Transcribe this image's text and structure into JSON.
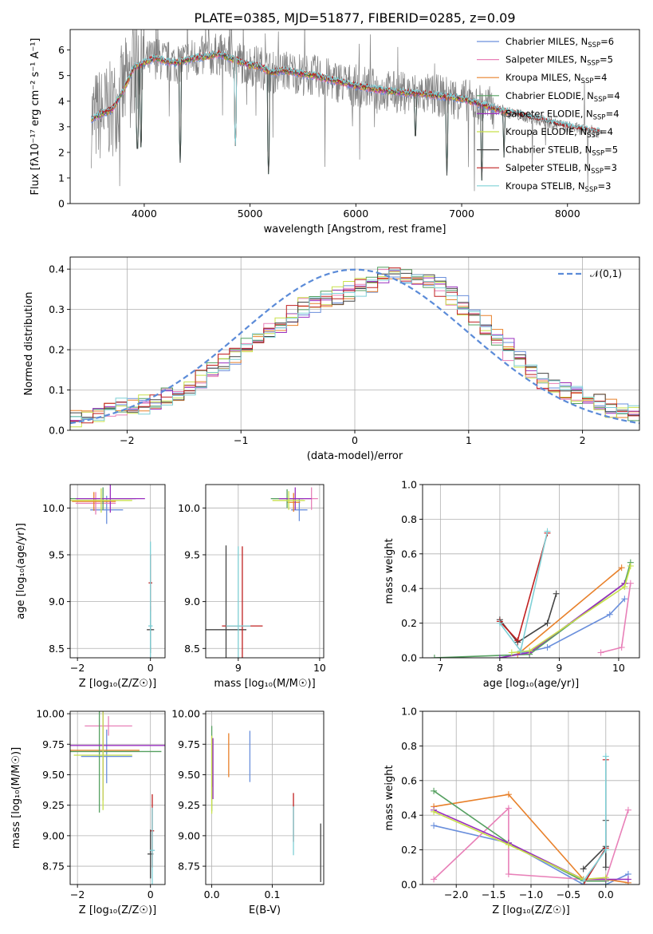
{
  "figure_title": "PLATE=0385, MJD=51877, FIBERID=0285, z=0.09",
  "colors": {
    "chabrier_miles": "#6a8fdc",
    "salpeter_miles": "#e880b8",
    "kroupa_miles": "#e8802a",
    "chabrier_elodie": "#55a060",
    "salpeter_elodie": "#9a2fbf",
    "kroupa_elodie": "#c8e04a",
    "chabrier_stelib": "#444444",
    "salpeter_stelib": "#c02020",
    "kroupa_stelib": "#7fd0d6",
    "observed": "#808080",
    "normal_curve": "#5b8bd8",
    "grid": "#b0b0b0"
  },
  "chart_data": [
    {
      "id": "spectrum",
      "type": "line",
      "title": "PLATE=0385, MJD=51877, FIBERID=0285, z=0.09",
      "xlabel": "wavelength [Angstrom, rest frame]",
      "ylabel": "Flux [fλ10⁻¹⁷ erg cm⁻² s⁻¹ A⁻¹]",
      "xlim": [
        3300,
        8680
      ],
      "ylim": [
        0,
        6.8
      ],
      "xticks": [
        4000,
        5000,
        6000,
        7000,
        8000
      ],
      "yticks": [
        0,
        1,
        2,
        3,
        4,
        5,
        6
      ],
      "legend_position": "top-right",
      "legend": [
        {
          "key": "chabrier_miles",
          "label": "Chabrier MILES, N",
          "sub": "SSP",
          "tail": "=6"
        },
        {
          "key": "salpeter_miles",
          "label": "Salpeter MILES, N",
          "sub": "SSP",
          "tail": "=5"
        },
        {
          "key": "kroupa_miles",
          "label": "Kroupa MILES, N",
          "sub": "SSP",
          "tail": "=4"
        },
        {
          "key": "chabrier_elodie",
          "label": "Chabrier ELODIE, N",
          "sub": "SSP",
          "tail": "=4"
        },
        {
          "key": "salpeter_elodie",
          "label": "Salpeter ELODIE, N",
          "sub": "SSP",
          "tail": "=4"
        },
        {
          "key": "kroupa_elodie",
          "label": "Kroupa ELODIE, N",
          "sub": "SSP",
          "tail": "=4"
        },
        {
          "key": "chabrier_stelib",
          "label": "Chabrier STELIB, N",
          "sub": "SSP",
          "tail": "=5"
        },
        {
          "key": "salpeter_stelib",
          "label": "Salpeter STELIB, N",
          "sub": "SSP",
          "tail": "=3"
        },
        {
          "key": "kroupa_stelib",
          "label": "Kroupa STELIB, N",
          "sub": "SSP",
          "tail": "=3"
        }
      ],
      "model_continuum": [
        [
          3500,
          3.3
        ],
        [
          3700,
          3.7
        ],
        [
          3800,
          4.4
        ],
        [
          3900,
          5.3
        ],
        [
          4000,
          5.5
        ],
        [
          4100,
          5.7
        ],
        [
          4200,
          5.55
        ],
        [
          4300,
          5.5
        ],
        [
          4400,
          5.6
        ],
        [
          4500,
          5.7
        ],
        [
          4600,
          5.75
        ],
        [
          4700,
          5.85
        ],
        [
          4800,
          5.7
        ],
        [
          4900,
          5.55
        ],
        [
          5000,
          5.4
        ],
        [
          5100,
          5.35
        ],
        [
          5200,
          5.1
        ],
        [
          5300,
          5.2
        ],
        [
          5400,
          5.15
        ],
        [
          5500,
          5.05
        ],
        [
          5600,
          5.0
        ],
        [
          5800,
          4.8
        ],
        [
          6000,
          4.6
        ],
        [
          6200,
          4.45
        ],
        [
          6400,
          4.35
        ],
        [
          6600,
          4.3
        ],
        [
          6800,
          4.2
        ],
        [
          7000,
          4.1
        ],
        [
          7200,
          3.85
        ],
        [
          7400,
          3.6
        ],
        [
          7600,
          3.4
        ],
        [
          7800,
          3.2
        ],
        [
          8000,
          3.0
        ],
        [
          8200,
          2.85
        ],
        [
          8300,
          2.8
        ]
      ],
      "model_extent": [
        3500,
        7450
      ],
      "stelib_extent": [
        3500,
        8300
      ],
      "observed_range": [
        3500,
        8330
      ],
      "observed_noise_scale": 1.2,
      "absorption_dips": [
        [
          3935,
          1.7
        ],
        [
          3970,
          1.9
        ],
        [
          4340,
          1.6
        ],
        [
          4861,
          2.1
        ],
        [
          5175,
          1.0
        ],
        [
          5500,
          5.0
        ],
        [
          6563,
          2.2
        ],
        [
          6860,
          1.1
        ],
        [
          7190,
          0.9
        ],
        [
          7400,
          1.8
        ]
      ]
    },
    {
      "id": "residual_histogram",
      "type": "bar",
      "xlabel": "(data-model)/error",
      "ylabel": "Normed distribution",
      "xlim": [
        -2.5,
        2.5
      ],
      "ylim": [
        0,
        0.43
      ],
      "xticks": [
        -2,
        -1,
        0,
        1,
        2
      ],
      "yticks": [
        0.0,
        0.1,
        0.2,
        0.3,
        0.4
      ],
      "bin_edges": [
        -2.5,
        2.5
      ],
      "bin_width": 0.1,
      "legend_position": "top-right",
      "legend": [
        {
          "key": "normal_curve",
          "label": "𝒩(0,1)"
        }
      ],
      "reference_curve": "normal pdf, mean 0, sigma 1",
      "series": [
        {
          "key": "chabrier_stelib",
          "values": [
            0.03,
            0.03,
            0.04,
            0.05,
            0.06,
            0.06,
            0.06,
            0.07,
            0.08,
            0.09,
            0.1,
            0.12,
            0.14,
            0.16,
            0.18,
            0.2,
            0.22,
            0.24,
            0.26,
            0.28,
            0.3,
            0.31,
            0.32,
            0.33,
            0.34,
            0.35,
            0.36,
            0.37,
            0.38,
            0.38,
            0.38,
            0.37,
            0.36,
            0.34,
            0.32,
            0.3,
            0.27,
            0.24,
            0.21,
            0.18,
            0.15,
            0.13,
            0.11,
            0.1,
            0.09,
            0.08,
            0.07,
            0.06,
            0.05,
            0.05
          ]
        },
        {
          "key": "salpeter_elodie",
          "values": [
            0.02,
            0.03,
            0.04,
            0.05,
            0.05,
            0.06,
            0.07,
            0.08,
            0.09,
            0.1,
            0.11,
            0.13,
            0.15,
            0.17,
            0.19,
            0.21,
            0.23,
            0.25,
            0.27,
            0.29,
            0.31,
            0.32,
            0.33,
            0.34,
            0.35,
            0.36,
            0.37,
            0.39,
            0.4,
            0.39,
            0.38,
            0.37,
            0.35,
            0.33,
            0.3,
            0.28,
            0.25,
            0.22,
            0.19,
            0.16,
            0.14,
            0.12,
            0.1,
            0.09,
            0.08,
            0.07,
            0.06,
            0.05,
            0.05,
            0.04
          ]
        }
      ]
    },
    {
      "id": "age_vs_Z",
      "type": "scatter",
      "xlabel": "Z [log₁₀(Z/Z☉)]",
      "ylabel": "age  [log₁₀(age/yr)]",
      "xlim": [
        -2.2,
        0.4
      ],
      "ylim": [
        8.4,
        10.25
      ],
      "xticks": [
        -2,
        0
      ],
      "yticks": [
        8.5,
        9.0,
        9.5,
        10.0
      ],
      "points": [
        {
          "key": "chabrier_miles",
          "x": -1.2,
          "xerr": 0.45,
          "y": 9.98,
          "yerr": 0.15
        },
        {
          "key": "salpeter_miles",
          "x": -1.5,
          "xerr": 0.55,
          "y": 10.05,
          "yerr": 0.12
        },
        {
          "key": "kroupa_miles",
          "x": -1.55,
          "xerr": 0.6,
          "y": 10.07,
          "yerr": 0.1
        },
        {
          "key": "chabrier_elodie",
          "x": -1.3,
          "xerr": 0.9,
          "y": 10.1,
          "yerr": 0.12
        },
        {
          "key": "salpeter_elodie",
          "x": -1.1,
          "xerr": 0.95,
          "y": 10.1,
          "yerr": 0.15
        },
        {
          "key": "kroupa_elodie",
          "x": -1.35,
          "xerr": 0.85,
          "y": 10.08,
          "yerr": 0.13
        },
        {
          "key": "chabrier_stelib",
          "x": 0.0,
          "xerr": 0.1,
          "y": 8.7,
          "yerr": 0.25
        },
        {
          "key": "salpeter_stelib",
          "x": 0.0,
          "xerr": 0.05,
          "y": 9.2,
          "yerr": 0.3
        },
        {
          "key": "kroupa_stelib",
          "x": 0.0,
          "xerr": 0.06,
          "y": 8.74,
          "yerr": 0.9
        }
      ]
    },
    {
      "id": "age_vs_mass",
      "type": "scatter",
      "xlabel": "mass [log₁₀(M/M☉)]",
      "ylabel": "",
      "xlim": [
        8.6,
        10.05
      ],
      "ylim": [
        8.4,
        10.25
      ],
      "xticks": [
        9,
        10
      ],
      "yticks": [
        8.5,
        9.0,
        9.5,
        10.0
      ],
      "points": [
        {
          "key": "chabrier_miles",
          "x": 9.75,
          "xerr": 0.1,
          "y": 9.98,
          "yerr": 0.12
        },
        {
          "key": "salpeter_miles",
          "x": 9.9,
          "xerr": 0.08,
          "y": 10.1,
          "yerr": 0.12
        },
        {
          "key": "kroupa_miles",
          "x": 9.68,
          "xerr": 0.08,
          "y": 10.06,
          "yerr": 0.1
        },
        {
          "key": "chabrier_elodie",
          "x": 9.6,
          "xerr": 0.2,
          "y": 10.1,
          "yerr": 0.1
        },
        {
          "key": "salpeter_elodie",
          "x": 9.7,
          "xerr": 0.2,
          "y": 10.1,
          "yerr": 0.12
        },
        {
          "key": "kroupa_elodie",
          "x": 9.62,
          "xerr": 0.2,
          "y": 10.08,
          "yerr": 0.1
        },
        {
          "key": "chabrier_stelib",
          "x": 8.85,
          "xerr": 0.25,
          "y": 8.7,
          "yerr": 0.9
        },
        {
          "key": "salpeter_stelib",
          "x": 9.05,
          "xerr": 0.25,
          "y": 8.74,
          "yerr": 0.85
        },
        {
          "key": "kroupa_stelib",
          "x": 9.0,
          "xerr": 0.15,
          "y": 8.74,
          "yerr": 0.85
        }
      ]
    },
    {
      "id": "weight_vs_age",
      "type": "line",
      "xlabel": "age  [log₁₀(age/yr)]",
      "ylabel": "mass weight",
      "xlim": [
        6.7,
        10.35
      ],
      "ylim": [
        0,
        1.0
      ],
      "xticks": [
        7,
        8,
        9,
        10
      ],
      "yticks": [
        0.0,
        0.2,
        0.4,
        0.6,
        0.8,
        1.0
      ],
      "series": [
        {
          "key": "chabrier_miles",
          "x": [
            8.0,
            8.8,
            9.85,
            10.1
          ],
          "y": [
            0.0,
            0.06,
            0.25,
            0.34
          ]
        },
        {
          "key": "salpeter_miles",
          "x": [
            9.7,
            10.05,
            10.2
          ],
          "y": [
            0.03,
            0.06,
            0.43
          ]
        },
        {
          "key": "kroupa_miles",
          "x": [
            8.3,
            10.05
          ],
          "y": [
            0.02,
            0.52
          ]
        },
        {
          "key": "chabrier_elodie",
          "x": [
            6.9,
            8.5,
            10.1,
            10.2
          ],
          "y": [
            0.0,
            0.02,
            0.43,
            0.55
          ]
        },
        {
          "key": "salpeter_elodie",
          "x": [
            8.0,
            8.5,
            10.1
          ],
          "y": [
            0.0,
            0.03,
            0.43
          ]
        },
        {
          "key": "kroupa_elodie",
          "x": [
            8.2,
            8.5,
            10.1,
            10.2
          ],
          "y": [
            0.03,
            0.04,
            0.41,
            0.53
          ]
        },
        {
          "key": "chabrier_stelib",
          "x": [
            8.0,
            8.3,
            8.8,
            8.95
          ],
          "y": [
            0.22,
            0.09,
            0.2,
            0.37
          ]
        },
        {
          "key": "salpeter_stelib",
          "x": [
            8.0,
            8.3,
            8.8
          ],
          "y": [
            0.21,
            0.1,
            0.72
          ]
        },
        {
          "key": "kroupa_stelib",
          "x": [
            8.0,
            8.35,
            8.8
          ],
          "y": [
            0.2,
            0.04,
            0.73
          ]
        }
      ]
    },
    {
      "id": "mass_vs_Z",
      "type": "scatter",
      "xlabel": "Z [log₁₀(Z/Z☉)]",
      "ylabel": "mass [log₁₀(M/M☉)]",
      "xlim": [
        -2.2,
        0.4
      ],
      "ylim": [
        8.6,
        10.02
      ],
      "xticks": [
        -2,
        0
      ],
      "yticks": [
        8.75,
        9.0,
        9.25,
        9.5,
        9.75,
        10.0
      ],
      "points": [
        {
          "key": "chabrier_miles",
          "x": -1.2,
          "xerr": 0.7,
          "y": 9.65,
          "yerr": 0.22
        },
        {
          "key": "salpeter_miles",
          "x": -1.15,
          "xerr": 0.65,
          "y": 9.9,
          "yerr": 0.08
        },
        {
          "key": "kroupa_miles",
          "x": -1.3,
          "xerr": 1.0,
          "y": 9.7,
          "yerr": 0.2
        },
        {
          "key": "chabrier_elodie",
          "x": -1.4,
          "xerr": 1.7,
          "y": 9.69,
          "yerr": 0.5
        },
        {
          "key": "salpeter_elodie",
          "x": -1.3,
          "xerr": 1.7,
          "y": 9.74,
          "yerr": 0.45
        },
        {
          "key": "kroupa_elodie",
          "x": -1.3,
          "xerr": 0.8,
          "y": 9.66,
          "yerr": 0.45
        },
        {
          "key": "chabrier_stelib",
          "x": 0.0,
          "xerr": 0.08,
          "y": 8.85,
          "yerr": 0.2
        },
        {
          "key": "salpeter_stelib",
          "x": 0.05,
          "xerr": 0.05,
          "y": 9.04,
          "yerr": 0.3
        },
        {
          "key": "kroupa_stelib",
          "x": 0.05,
          "xerr": 0.07,
          "y": 8.88,
          "yerr": 0.35
        }
      ]
    },
    {
      "id": "mass_vs_ebv",
      "type": "scatter",
      "xlabel": "E(B-V)",
      "ylabel": "",
      "xlim": [
        -0.01,
        0.185
      ],
      "ylim": [
        8.6,
        10.02
      ],
      "xticks": [
        0.0,
        0.1
      ],
      "yticks": [
        8.75,
        9.0,
        9.25,
        9.5,
        9.75,
        10.0
      ],
      "points": [
        {
          "key": "chabrier_miles",
          "x": 0.063,
          "y": 9.65,
          "yerr": 0.21
        },
        {
          "key": "salpeter_miles",
          "x": 0.001,
          "y": 9.6,
          "yerr": 0.2
        },
        {
          "key": "kroupa_miles",
          "x": 0.028,
          "y": 9.66,
          "yerr": 0.18
        },
        {
          "key": "chabrier_elodie",
          "x": 0.0,
          "y": 9.55,
          "yerr": 0.35
        },
        {
          "key": "salpeter_elodie",
          "x": 0.002,
          "y": 9.55,
          "yerr": 0.25
        },
        {
          "key": "kroupa_elodie",
          "x": 0.0,
          "y": 9.5,
          "yerr": 0.32
        },
        {
          "key": "chabrier_stelib",
          "x": 0.18,
          "y": 8.86,
          "yerr": 0.24
        },
        {
          "key": "salpeter_stelib",
          "x": 0.135,
          "y": 9.15,
          "yerr": 0.2
        },
        {
          "key": "kroupa_stelib",
          "x": 0.135,
          "y": 9.04,
          "yerr": 0.2
        }
      ]
    },
    {
      "id": "weight_vs_Z",
      "type": "line",
      "xlabel": "Z [log₁₀(Z/Z☉)]",
      "ylabel": "mass weight",
      "xlim": [
        -2.45,
        0.45
      ],
      "ylim": [
        0,
        1.0
      ],
      "xticks": [
        -2.0,
        -1.5,
        -1.0,
        -0.5,
        0.0
      ],
      "yticks": [
        0.0,
        0.2,
        0.4,
        0.6,
        0.8,
        1.0
      ],
      "series": [
        {
          "key": "chabrier_miles",
          "x": [
            -2.3,
            -1.3,
            -0.3,
            0.0,
            0.3
          ],
          "y": [
            0.34,
            0.24,
            0.0,
            0.0,
            0.06
          ]
        },
        {
          "key": "salpeter_miles",
          "x": [
            -2.3,
            -1.3,
            -1.3,
            -0.3,
            0.0,
            0.3
          ],
          "y": [
            0.03,
            0.44,
            0.06,
            0.03,
            0.03,
            0.43
          ]
        },
        {
          "key": "kroupa_miles",
          "x": [
            -2.3,
            -1.3,
            -0.3,
            0.0,
            0.3
          ],
          "y": [
            0.45,
            0.52,
            0.03,
            0.03,
            0.01
          ]
        },
        {
          "key": "chabrier_elodie",
          "x": [
            -2.3,
            -1.3,
            -0.3,
            0.0
          ],
          "y": [
            0.54,
            0.24,
            0.02,
            0.02
          ]
        },
        {
          "key": "salpeter_elodie",
          "x": [
            -2.3,
            -1.3,
            -0.3,
            0.0,
            0.3
          ],
          "y": [
            0.43,
            0.24,
            0.03,
            0.03,
            0.03
          ]
        },
        {
          "key": "kroupa_elodie",
          "x": [
            -2.3,
            -1.3,
            -0.3,
            0.0
          ],
          "y": [
            0.42,
            0.23,
            0.03,
            0.04
          ]
        },
        {
          "key": "chabrier_stelib",
          "x": [
            -0.3,
            0.0,
            0.0,
            0.0
          ],
          "y": [
            0.09,
            0.22,
            0.37,
            0.1
          ]
        },
        {
          "key": "salpeter_stelib",
          "x": [
            -0.3,
            0.0,
            0.0
          ],
          "y": [
            0.0,
            0.21,
            0.72
          ]
        },
        {
          "key": "kroupa_stelib",
          "x": [
            -0.3,
            0.0,
            0.0
          ],
          "y": [
            0.02,
            0.2,
            0.74
          ]
        }
      ]
    }
  ]
}
